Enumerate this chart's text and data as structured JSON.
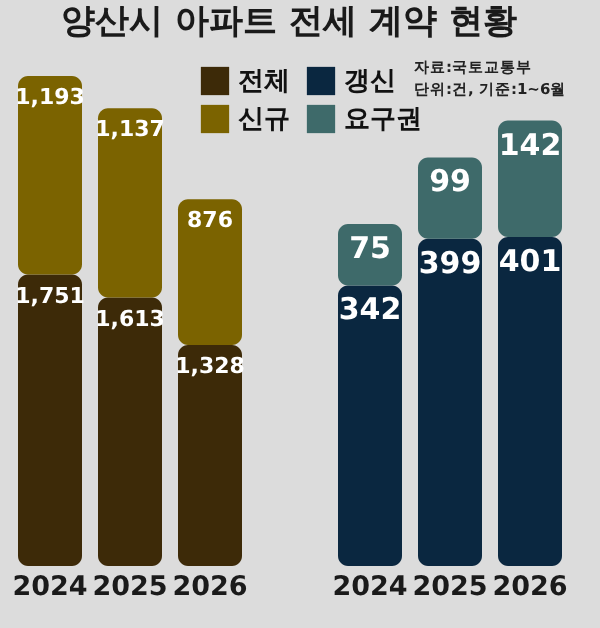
{
  "chart_data": [
    {
      "type": "bar",
      "title": "양산시 아파트 전세 계약 현황",
      "categories": [
        "2024",
        "2025",
        "2026"
      ],
      "stacked": true,
      "legend": "top right",
      "series": [
        {
          "name": "전체",
          "color": "#3d2a08",
          "values": [
            1751,
            1613,
            1328
          ],
          "value_labels": [
            "1,751",
            "1,613",
            "1,328"
          ]
        },
        {
          "name": "신규",
          "color": "#7b6300",
          "values": [
            1193,
            1137,
            876
          ],
          "value_labels": [
            "1,193",
            "1,137",
            "876"
          ]
        }
      ]
    },
    {
      "type": "bar",
      "categories": [
        "2024",
        "2025",
        "2026"
      ],
      "stacked": true,
      "data_labels": true,
      "legend": "top left",
      "annotations": [
        "자료:국토교통부",
        "단위:건, 기준:1~6월"
      ],
      "series": [
        {
          "name": "갱신",
          "color": "#0a2740",
          "values": [
            342,
            399,
            401
          ]
        },
        {
          "name": "요구권",
          "color": "#3e6a6a",
          "values": [
            75,
            99,
            142
          ]
        }
      ]
    }
  ]
}
